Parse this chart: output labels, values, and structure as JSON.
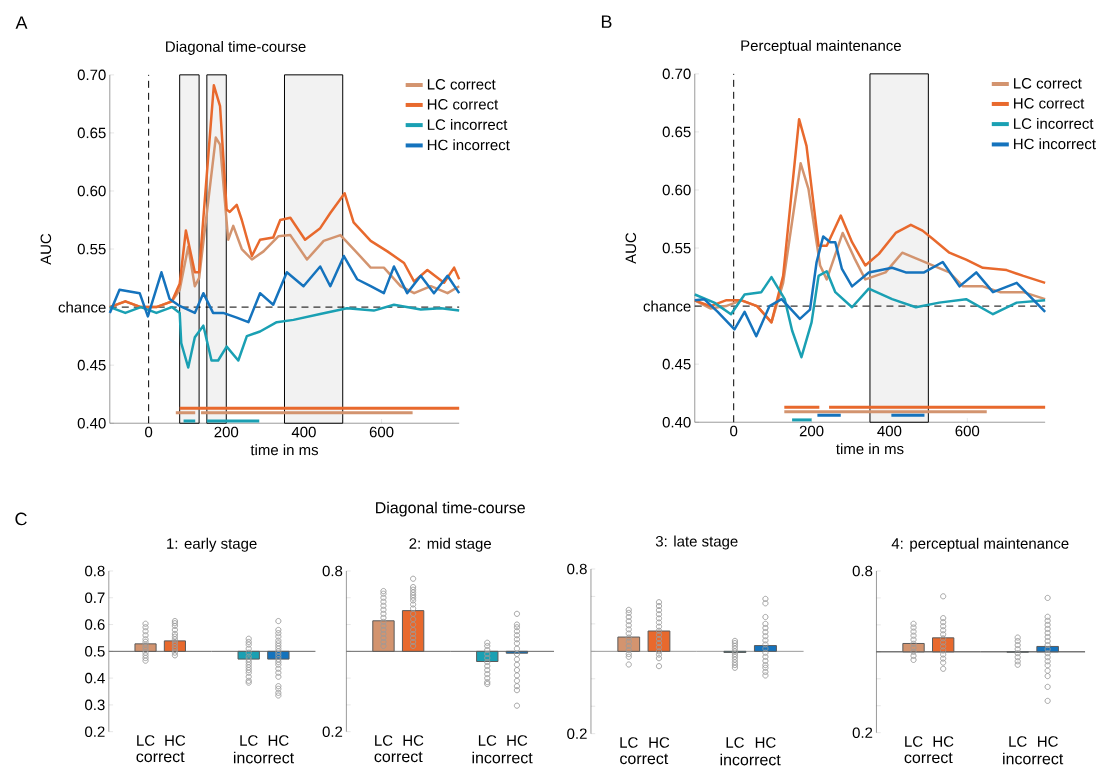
{
  "chart_data": [
    {
      "type": "line",
      "title": "Diagonal time-course",
      "xlabel": "time in ms",
      "ylabel": "AUC",
      "annotations": [
        "A"
      ],
      "xlim": [
        -100,
        800
      ],
      "ylim": [
        0.4,
        0.7
      ],
      "xticks": [
        0,
        200,
        400,
        600
      ],
      "yticks": [
        {
          "value": 0.4,
          "label": "0.40"
        },
        {
          "value": 0.45,
          "label": "0.45"
        },
        {
          "value": 0.5,
          "label": "chance"
        },
        {
          "value": 0.55,
          "label": "0.55"
        },
        {
          "value": 0.6,
          "label": "0.60"
        },
        {
          "value": 0.65,
          "label": "0.65"
        },
        {
          "value": 0.7,
          "label": "0.70"
        }
      ],
      "legend": "top right",
      "grid": false,
      "marker": "none",
      "ref_lines": [
        {
          "axis": "y",
          "value": 0.5,
          "line_style": "dashed"
        },
        {
          "axis": "x",
          "value": 0,
          "line_style": "dashed"
        }
      ],
      "bands": [
        {
          "axis": "x",
          "from": 80,
          "to": 130
        },
        {
          "axis": "x",
          "from": 150,
          "to": 200
        },
        {
          "axis": "x",
          "from": 350,
          "to": 500
        }
      ],
      "series": [
        {
          "name": "LC correct",
          "color": "#d3946f",
          "x": [
            -100,
            -60,
            -20,
            20,
            60,
            80,
            102,
            119,
            130,
            173,
            184,
            205,
            218,
            240,
            266,
            296,
            334,
            365,
            408,
            451,
            494,
            528,
            572,
            606,
            649,
            684,
            727,
            770,
            800
          ],
          "values": [
            0.5,
            0.505,
            0.5,
            0.5,
            0.505,
            0.515,
            0.552,
            0.518,
            0.525,
            0.646,
            0.64,
            0.558,
            0.57,
            0.55,
            0.541,
            0.548,
            0.561,
            0.562,
            0.541,
            0.557,
            0.562,
            0.55,
            0.534,
            0.534,
            0.518,
            0.512,
            0.518,
            0.512,
            0.518
          ]
        },
        {
          "name": "HC correct",
          "color": "#e8692d",
          "x": [
            -100,
            -60,
            -20,
            20,
            60,
            80,
            96,
            119,
            130,
            168,
            184,
            201,
            209,
            227,
            240,
            266,
            287,
            321,
            339,
            365,
            403,
            442,
            468,
            505,
            528,
            572,
            615,
            658,
            684,
            718,
            761,
            787,
            800
          ],
          "values": [
            0.5,
            0.505,
            0.5,
            0.5,
            0.505,
            0.52,
            0.566,
            0.53,
            0.53,
            0.691,
            0.673,
            0.584,
            0.582,
            0.588,
            0.575,
            0.544,
            0.558,
            0.56,
            0.575,
            0.577,
            0.558,
            0.568,
            0.581,
            0.598,
            0.573,
            0.557,
            0.548,
            0.538,
            0.522,
            0.532,
            0.521,
            0.534,
            0.524
          ]
        },
        {
          "name": "LC incorrect",
          "color": "#1aa0b3",
          "x": [
            -100,
            -60,
            -20,
            20,
            60,
            80,
            84,
            102,
            119,
            141,
            162,
            179,
            201,
            231,
            253,
            287,
            330,
            373,
            442,
            511,
            580,
            632,
            701,
            753,
            800
          ],
          "values": [
            0.5,
            0.495,
            0.5,
            0.495,
            0.5,
            0.495,
            0.469,
            0.448,
            0.474,
            0.484,
            0.454,
            0.454,
            0.466,
            0.454,
            0.475,
            0.479,
            0.487,
            0.489,
            0.494,
            0.499,
            0.497,
            0.502,
            0.498,
            0.499,
            0.497
          ]
        },
        {
          "name": "HC incorrect",
          "color": "#1573bd",
          "x": [
            -100,
            -75,
            -23,
            -2,
            33,
            54,
            80,
            119,
            141,
            166,
            192,
            227,
            257,
            287,
            321,
            356,
            399,
            442,
            468,
            503,
            537,
            572,
            606,
            632,
            666,
            701,
            735,
            770,
            800
          ],
          "values": [
            0.495,
            0.515,
            0.512,
            0.492,
            0.53,
            0.507,
            0.501,
            0.495,
            0.512,
            0.495,
            0.495,
            0.491,
            0.487,
            0.512,
            0.502,
            0.53,
            0.518,
            0.535,
            0.518,
            0.544,
            0.524,
            0.518,
            0.512,
            0.535,
            0.512,
            0.527,
            0.512,
            0.527,
            0.512
          ]
        },
        {
          "color": "#e8692d",
          "x": [
            80,
            800
          ],
          "values": [
            0.413,
            0.413
          ]
        },
        {
          "color": "#d3946f",
          "x": [
            70,
            120,
            127,
            135,
            680
          ],
          "values": [
            0.409,
            0.409,
            null,
            0.409,
            0.409
          ]
        },
        {
          "color": "#1aa0b3",
          "x": [
            90,
            120,
            135,
            150,
            285
          ],
          "values": [
            0.402,
            0.402,
            null,
            0.402,
            0.402
          ]
        }
      ]
    },
    {
      "type": "line",
      "title": "Perceptual maintenance",
      "xlabel": "time in ms",
      "ylabel": "AUC",
      "annotations": [
        "B"
      ],
      "xlim": [
        -100,
        800
      ],
      "ylim": [
        0.4,
        0.7
      ],
      "xticks": [
        0,
        200,
        400,
        600
      ],
      "yticks": [
        {
          "value": 0.4,
          "label": "0.40"
        },
        {
          "value": 0.45,
          "label": "0.45"
        },
        {
          "value": 0.5,
          "label": "chance"
        },
        {
          "value": 0.55,
          "label": "0.55"
        },
        {
          "value": 0.6,
          "label": "0.60"
        },
        {
          "value": 0.65,
          "label": "0.65"
        },
        {
          "value": 0.7,
          "label": "0.70"
        }
      ],
      "legend": "top right",
      "grid": false,
      "marker": "none",
      "ref_lines": [
        {
          "axis": "y",
          "value": 0.5,
          "line_style": "dashed"
        },
        {
          "axis": "x",
          "value": 0,
          "line_style": "dashed"
        }
      ],
      "bands": [
        {
          "axis": "x",
          "from": 350,
          "to": 500
        }
      ],
      "series": [
        {
          "name": "LC correct",
          "color": "#d3946f",
          "x": [
            -100,
            -60,
            -20,
            20,
            60,
            97,
            127,
            172,
            192,
            222,
            239,
            280,
            312,
            338,
            390,
            433,
            476,
            511,
            554,
            589,
            640,
            684,
            744,
            800
          ],
          "values": [
            0.505,
            0.498,
            0.5,
            0.505,
            0.5,
            0.486,
            0.52,
            0.623,
            0.601,
            0.535,
            0.523,
            0.563,
            0.54,
            0.523,
            0.529,
            0.546,
            0.54,
            0.535,
            0.529,
            0.517,
            0.517,
            0.512,
            0.512,
            0.506
          ]
        },
        {
          "name": "HC correct",
          "color": "#e8692d",
          "x": [
            -100,
            -60,
            -20,
            20,
            60,
            97,
            127,
            168,
            187,
            218,
            239,
            275,
            304,
            338,
            373,
            416,
            455,
            485,
            511,
            554,
            597,
            640,
            701,
            744,
            800
          ],
          "values": [
            0.505,
            0.5,
            0.505,
            0.505,
            0.5,
            0.486,
            0.526,
            0.661,
            0.638,
            0.552,
            0.552,
            0.578,
            0.555,
            0.535,
            0.545,
            0.563,
            0.57,
            0.565,
            0.558,
            0.546,
            0.54,
            0.533,
            0.531,
            0.526,
            0.52
          ]
        },
        {
          "name": "LC incorrect",
          "color": "#1aa0b3",
          "x": [
            -100,
            -50,
            -7,
            28,
            71,
            97,
            131,
            150,
            174,
            200,
            218,
            239,
            261,
            304,
            347,
            407,
            468,
            528,
            597,
            666,
            727,
            800
          ],
          "values": [
            0.51,
            0.503,
            0.493,
            0.51,
            0.512,
            0.525,
            0.506,
            0.479,
            0.456,
            0.486,
            0.526,
            0.53,
            0.512,
            0.499,
            0.515,
            0.506,
            0.499,
            0.503,
            0.506,
            0.493,
            0.503,
            0.505
          ]
        },
        {
          "name": "HC incorrect",
          "color": "#1573bd",
          "x": [
            -100,
            -76,
            -41,
            2,
            28,
            58,
            92,
            123,
            170,
            196,
            213,
            230,
            248,
            261,
            278,
            304,
            347,
            407,
            442,
            489,
            537,
            580,
            623,
            666,
            727,
            800
          ],
          "values": [
            0.505,
            0.506,
            0.495,
            0.48,
            0.495,
            0.474,
            0.5,
            0.506,
            0.489,
            0.497,
            0.538,
            0.56,
            0.555,
            0.555,
            0.532,
            0.517,
            0.529,
            0.533,
            0.529,
            0.529,
            0.538,
            0.517,
            0.529,
            0.512,
            0.52,
            0.495
          ]
        },
        {
          "color": "#e8692d",
          "x": [
            130,
            220,
            232,
            245,
            800
          ],
          "values": [
            0.413,
            0.413,
            null,
            0.413,
            0.413
          ]
        },
        {
          "color": "#d3946f",
          "x": [
            130,
            650
          ],
          "values": [
            0.409,
            0.409
          ]
        },
        {
          "color": "#1573bd",
          "x": [
            215,
            275,
            340,
            405,
            490
          ],
          "values": [
            0.406,
            0.406,
            null,
            0.406,
            0.406
          ]
        },
        {
          "color": "#1aa0b3",
          "x": [
            150,
            200
          ],
          "values": [
            0.402,
            0.402
          ]
        }
      ]
    },
    {
      "type": "bar",
      "title": "1: early stage",
      "xlabel": "correct",
      "annotations": [
        "C"
      ],
      "categories": [
        "LC",
        "HC"
      ],
      "ylim": [
        0.2,
        0.8
      ],
      "yticks": [
        0.2,
        0.3,
        0.4,
        0.5,
        0.6,
        0.7,
        0.8
      ],
      "marker": "circle",
      "ref_lines": [
        {
          "axis": "y",
          "value": 0.5,
          "color": "#666666"
        }
      ],
      "series": [
        {
          "type": "bar",
          "values": [
            0.028,
            0.039
          ],
          "base": [
            0.5,
            0.5
          ],
          "colors": [
            "#d3946f",
            "#e8692d"
          ]
        },
        {
          "type": "scatter",
          "color": "#9a9a9a",
          "x": [
            "LC",
            "LC",
            "LC",
            "LC",
            "LC",
            "LC",
            "LC",
            "LC",
            "LC",
            "LC",
            "LC",
            "LC",
            "LC"
          ],
          "values": [
            0.603,
            0.59,
            0.575,
            0.56,
            0.545,
            0.535,
            0.525,
            0.515,
            0.505,
            0.495,
            0.485,
            0.475,
            0.465
          ]
        },
        {
          "type": "scatter",
          "color": "#9a9a9a",
          "x": [
            "HC",
            "HC",
            "HC",
            "HC",
            "HC",
            "HC",
            "HC",
            "HC",
            "HC",
            "HC",
            "HC",
            "HC",
            "HC"
          ],
          "values": [
            0.613,
            0.605,
            0.595,
            0.58,
            0.565,
            0.555,
            0.545,
            0.535,
            0.525,
            0.515,
            0.505,
            0.495,
            0.485
          ]
        }
      ]
    },
    {
      "type": "bar",
      "xlabel": "incorrect",
      "categories": [
        "LC",
        "HC"
      ],
      "ylim": [
        0.2,
        0.8
      ],
      "tick_labels": "x",
      "marker": "circle",
      "ref_lines": [
        {
          "axis": "y",
          "value": 0.5,
          "color": "#666666"
        }
      ],
      "series": [
        {
          "type": "bar",
          "values": [
            -0.029,
            -0.029
          ],
          "base": [
            0.5,
            0.5
          ],
          "colors": [
            "#1aa0b3",
            "#1573bd"
          ]
        },
        {
          "type": "scatter",
          "color": "#9a9a9a",
          "x": [
            "LC",
            "LC",
            "LC",
            "LC",
            "LC",
            "LC",
            "LC",
            "LC",
            "LC",
            "LC",
            "LC",
            "LC",
            "LC",
            "LC",
            "LC"
          ],
          "values": [
            0.547,
            0.535,
            0.525,
            0.51,
            0.495,
            0.48,
            0.47,
            0.46,
            0.45,
            0.44,
            0.43,
            0.42,
            0.405,
            0.39,
            0.383
          ]
        },
        {
          "type": "scatter",
          "color": "#9a9a9a",
          "x": [
            "HC",
            "HC",
            "HC",
            "HC",
            "HC",
            "HC",
            "HC",
            "HC",
            "HC",
            "HC",
            "HC",
            "HC",
            "HC",
            "HC",
            "HC",
            "HC",
            "HC",
            "HC",
            "HC",
            "HC",
            "HC"
          ],
          "values": [
            0.613,
            0.58,
            0.568,
            0.555,
            0.54,
            0.53,
            0.52,
            0.51,
            0.5,
            0.49,
            0.48,
            0.47,
            0.46,
            0.45,
            0.435,
            0.42,
            0.405,
            0.37,
            0.36,
            0.345,
            0.335
          ]
        }
      ]
    },
    {
      "type": "bar",
      "title": "2: mid stage",
      "subtitle": "Diagonal time-course",
      "xlabel": "correct",
      "categories": [
        "LC",
        "HC"
      ],
      "ylim": [
        0.2,
        0.8
      ],
      "yticks": [
        0.2,
        {
          "value": 0.3,
          "label": null
        },
        {
          "value": 0.4,
          "label": null
        },
        {
          "value": 0.5,
          "label": null
        },
        {
          "value": 0.6,
          "label": null
        },
        {
          "value": 0.7,
          "label": null
        },
        0.8
      ],
      "marker": "circle",
      "ref_lines": [
        {
          "axis": "y",
          "value": 0.5,
          "color": "#666666"
        }
      ],
      "series": [
        {
          "type": "bar",
          "values": [
            0.114,
            0.152
          ],
          "base": [
            0.5,
            0.5
          ],
          "colors": [
            "#d3946f",
            "#e8692d"
          ]
        },
        {
          "type": "scatter",
          "color": "#9a9a9a",
          "x": [
            "LC",
            "LC",
            "LC",
            "LC",
            "LC",
            "LC",
            "LC",
            "LC",
            "LC",
            "LC",
            "LC",
            "LC",
            "LC",
            "LC",
            "LC"
          ],
          "values": [
            0.725,
            0.715,
            0.7,
            0.685,
            0.67,
            0.655,
            0.64,
            0.625,
            0.61,
            0.595,
            0.58,
            0.565,
            0.55,
            0.535,
            0.52
          ]
        },
        {
          "type": "scatter",
          "color": "#9a9a9a",
          "x": [
            "HC",
            "HC",
            "HC",
            "HC",
            "HC",
            "HC",
            "HC",
            "HC",
            "HC",
            "HC",
            "HC",
            "HC",
            "HC",
            "HC",
            "HC",
            "HC",
            "HC"
          ],
          "values": [
            0.771,
            0.74,
            0.73,
            0.72,
            0.71,
            0.7,
            0.69,
            0.675,
            0.66,
            0.64,
            0.62,
            0.6,
            0.58,
            0.565,
            0.55,
            0.535,
            0.52
          ]
        }
      ]
    },
    {
      "type": "bar",
      "xlabel": "incorrect",
      "categories": [
        "LC",
        "HC"
      ],
      "ylim": [
        0.2,
        0.8
      ],
      "tick_labels": "x",
      "marker": "circle",
      "ref_lines": [
        {
          "axis": "y",
          "value": 0.5,
          "color": "#666666"
        }
      ],
      "series": [
        {
          "type": "bar",
          "values": [
            -0.038,
            -0.007
          ],
          "base": [
            0.5,
            0.5
          ],
          "colors": [
            "#1aa0b3",
            "#1573bd"
          ]
        },
        {
          "type": "scatter",
          "color": "#9a9a9a",
          "x": [
            "LC",
            "LC",
            "LC",
            "LC",
            "LC",
            "LC",
            "LC",
            "LC",
            "LC",
            "LC",
            "LC",
            "LC"
          ],
          "values": [
            0.532,
            0.52,
            0.505,
            0.49,
            0.475,
            0.46,
            0.445,
            0.43,
            0.415,
            0.4,
            0.385,
            0.378
          ]
        },
        {
          "type": "scatter",
          "color": "#9a9a9a",
          "x": [
            "HC",
            "HC",
            "HC",
            "HC",
            "HC",
            "HC",
            "HC",
            "HC",
            "HC",
            "HC",
            "HC",
            "HC",
            "HC",
            "HC",
            "HC",
            "HC",
            "HC"
          ],
          "values": [
            0.64,
            0.6,
            0.59,
            0.575,
            0.56,
            0.545,
            0.53,
            0.51,
            0.49,
            0.47,
            0.45,
            0.43,
            0.41,
            0.39,
            0.37,
            0.355,
            0.297
          ]
        }
      ]
    },
    {
      "type": "bar",
      "title": "3: late stage",
      "xlabel": "correct",
      "categories": [
        "LC",
        "HC"
      ],
      "ylim": [
        0.2,
        0.8
      ],
      "yticks": [
        0.2,
        {
          "value": 0.3,
          "label": null
        },
        {
          "value": 0.4,
          "label": null
        },
        {
          "value": 0.5,
          "label": null
        },
        {
          "value": 0.6,
          "label": null
        },
        {
          "value": 0.7,
          "label": null
        },
        0.8
      ],
      "marker": "circle",
      "ref_lines": [
        {
          "axis": "y",
          "value": 0.5,
          "color": "#9a9a9a"
        }
      ],
      "series": [
        {
          "type": "bar",
          "values": [
            0.052,
            0.074
          ],
          "base": [
            0.5,
            0.5
          ],
          "colors": [
            "#d3946f",
            "#e8692d"
          ]
        },
        {
          "type": "scatter",
          "color": "#9a9a9a",
          "x": [
            "LC",
            "LC",
            "LC",
            "LC",
            "LC",
            "LC",
            "LC",
            "LC",
            "LC",
            "LC",
            "LC",
            "LC",
            "LC",
            "LC"
          ],
          "values": [
            0.651,
            0.64,
            0.625,
            0.61,
            0.595,
            0.58,
            0.565,
            0.55,
            0.535,
            0.52,
            0.505,
            0.49,
            0.48,
            0.452
          ]
        },
        {
          "type": "scatter",
          "color": "#9a9a9a",
          "x": [
            "HC",
            "HC",
            "HC",
            "HC",
            "HC",
            "HC",
            "HC",
            "HC",
            "HC",
            "HC",
            "HC",
            "HC",
            "HC",
            "HC",
            "HC",
            "HC"
          ],
          "values": [
            0.679,
            0.665,
            0.65,
            0.635,
            0.62,
            0.605,
            0.59,
            0.575,
            0.56,
            0.545,
            0.53,
            0.515,
            0.5,
            0.488,
            0.475,
            0.446
          ]
        }
      ]
    },
    {
      "type": "bar",
      "xlabel": "incorrect",
      "categories": [
        "LC",
        "HC"
      ],
      "ylim": [
        0.2,
        0.8
      ],
      "tick_labels": "x",
      "marker": "circle",
      "ref_lines": [
        {
          "axis": "y",
          "value": 0.5,
          "color": "#9a9a9a"
        }
      ],
      "series": [
        {
          "type": "bar",
          "values": [
            -0.004,
            0.021
          ],
          "base": [
            0.5,
            0.5
          ],
          "colors": [
            "#1aa0b3",
            "#1573bd"
          ]
        },
        {
          "type": "scatter",
          "color": "#9a9a9a",
          "x": [
            "LC",
            "LC",
            "LC",
            "LC",
            "LC",
            "LC",
            "LC",
            "LC",
            "LC",
            "LC",
            "LC"
          ],
          "values": [
            0.538,
            0.53,
            0.52,
            0.51,
            0.5,
            0.49,
            0.48,
            0.47,
            0.46,
            0.45,
            0.44
          ]
        },
        {
          "type": "scatter",
          "color": "#9a9a9a",
          "x": [
            "HC",
            "HC",
            "HC",
            "HC",
            "HC",
            "HC",
            "HC",
            "HC",
            "HC",
            "HC",
            "HC",
            "HC",
            "HC",
            "HC",
            "HC",
            "HC",
            "HC"
          ],
          "values": [
            0.691,
            0.675,
            0.625,
            0.6,
            0.585,
            0.57,
            0.555,
            0.54,
            0.525,
            0.51,
            0.495,
            0.48,
            0.465,
            0.45,
            0.44,
            0.425,
            0.412
          ]
        }
      ]
    },
    {
      "type": "bar",
      "title": "4: perceptual maintenance",
      "xlabel": "correct",
      "categories": [
        "LC",
        "HC"
      ],
      "ylim": [
        0.2,
        0.8
      ],
      "yticks": [
        0.2,
        {
          "value": 0.3,
          "label": null
        },
        {
          "value": 0.4,
          "label": null
        },
        {
          "value": 0.5,
          "label": null
        },
        {
          "value": 0.6,
          "label": null
        },
        {
          "value": 0.7,
          "label": null
        },
        0.8
      ],
      "marker": "circle",
      "ref_lines": [
        {
          "axis": "y",
          "value": 0.5,
          "color": "#333333"
        }
      ],
      "series": [
        {
          "type": "bar",
          "values": [
            0.031,
            0.052
          ],
          "base": [
            0.5,
            0.5
          ],
          "colors": [
            "#d3946f",
            "#e8692d"
          ]
        },
        {
          "type": "scatter",
          "color": "#9a9a9a",
          "x": [
            "LC",
            "LC",
            "LC",
            "LC",
            "LC",
            "LC",
            "LC",
            "LC",
            "LC",
            "LC"
          ],
          "values": [
            0.604,
            0.59,
            0.575,
            0.56,
            0.545,
            0.53,
            0.515,
            0.5,
            0.485,
            0.47
          ]
        },
        {
          "type": "scatter",
          "color": "#9a9a9a",
          "x": [
            "HC",
            "HC",
            "HC",
            "HC",
            "HC",
            "HC",
            "HC",
            "HC",
            "HC",
            "HC",
            "HC",
            "HC",
            "HC",
            "HC"
          ],
          "values": [
            0.706,
            0.625,
            0.61,
            0.595,
            0.58,
            0.565,
            0.55,
            0.535,
            0.52,
            0.505,
            0.49,
            0.475,
            0.46,
            0.437
          ]
        }
      ]
    },
    {
      "type": "bar",
      "xlabel": "incorrect",
      "categories": [
        "LC",
        "HC"
      ],
      "ylim": [
        0.2,
        0.8
      ],
      "tick_labels": "x",
      "marker": "circle",
      "ref_lines": [
        {
          "axis": "y",
          "value": 0.5,
          "color": "#333333"
        }
      ],
      "series": [
        {
          "type": "bar",
          "values": [
            -0.001,
            0.02
          ],
          "base": [
            0.5,
            0.5
          ],
          "colors": [
            "#1aa0b3",
            "#1573bd"
          ]
        },
        {
          "type": "scatter",
          "color": "#9a9a9a",
          "x": [
            "LC",
            "LC",
            "LC",
            "LC",
            "LC",
            "LC",
            "LC",
            "LC"
          ],
          "values": [
            0.553,
            0.54,
            0.525,
            0.51,
            0.495,
            0.48,
            0.465,
            0.452
          ]
        },
        {
          "type": "scatter",
          "color": "#9a9a9a",
          "x": [
            "HC",
            "HC",
            "HC",
            "HC",
            "HC",
            "HC",
            "HC",
            "HC",
            "HC",
            "HC",
            "HC",
            "HC",
            "HC",
            "HC",
            "HC",
            "HC",
            "HC",
            "HC"
          ],
          "values": [
            0.7,
            0.63,
            0.615,
            0.6,
            0.585,
            0.57,
            0.555,
            0.54,
            0.525,
            0.51,
            0.495,
            0.48,
            0.465,
            0.45,
            0.43,
            0.41,
            0.37,
            0.318
          ]
        }
      ]
    }
  ]
}
